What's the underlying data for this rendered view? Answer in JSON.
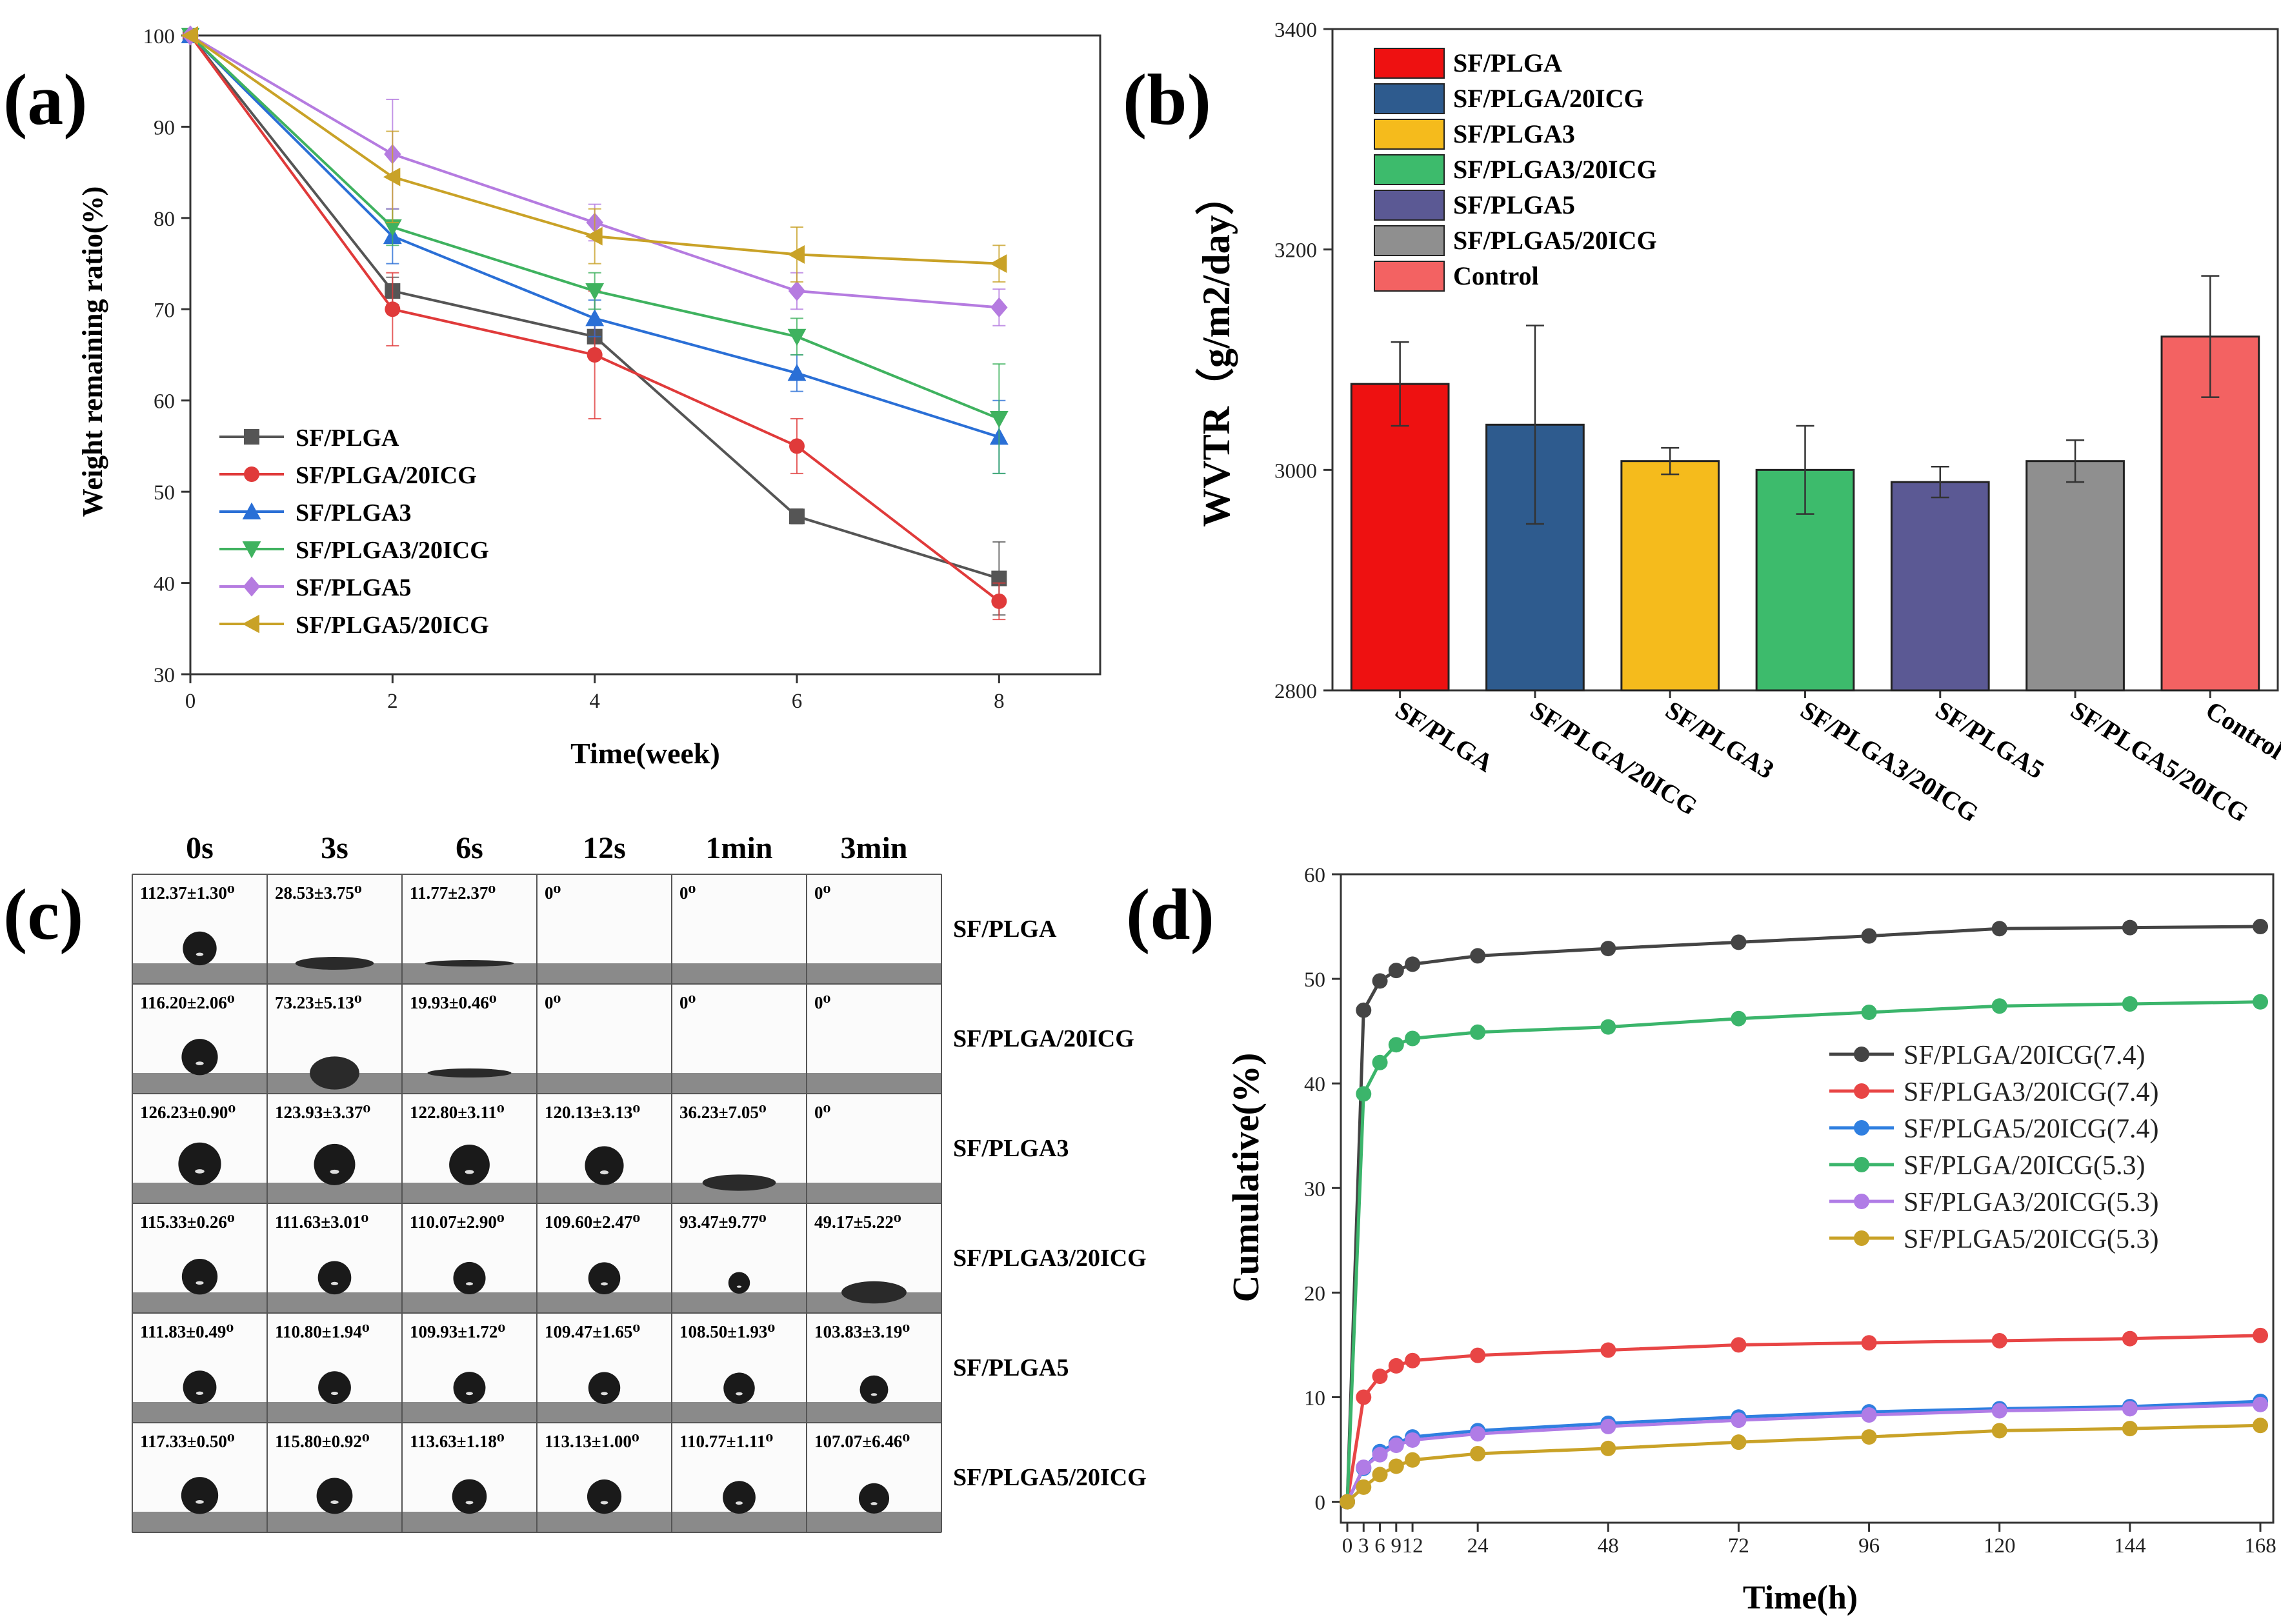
{
  "figure": {
    "labels": [
      "(a)",
      "(b)",
      "(c)",
      "(d)"
    ]
  },
  "chart_data": [
    {
      "id": "a",
      "type": "line",
      "xlabel": "Time(week)",
      "ylabel": "Weight remaining ratio(%)",
      "xlim": [
        0,
        9
      ],
      "ylim": [
        30,
        100
      ],
      "xticks": [
        0,
        2,
        4,
        6,
        8
      ],
      "yticks": [
        30,
        40,
        50,
        60,
        70,
        80,
        90,
        100
      ],
      "legend_position": "bottom-left",
      "x": [
        0,
        2,
        4,
        6,
        8
      ],
      "series": [
        {
          "name": "SF/PLGA",
          "color": "#555555",
          "marker": "square",
          "values": [
            100,
            72,
            67,
            47.3,
            40.5
          ],
          "errors": [
            0,
            1.5,
            1.5,
            0.8,
            4
          ]
        },
        {
          "name": "SF/PLGA/20ICG",
          "color": "#e03a3a",
          "marker": "circle",
          "values": [
            100,
            70,
            65,
            55,
            38
          ],
          "errors": [
            0,
            4,
            7,
            3,
            2
          ]
        },
        {
          "name": "SF/PLGA3",
          "color": "#2a6fd6",
          "marker": "triangle-up",
          "values": [
            100,
            78,
            69,
            63,
            56
          ],
          "errors": [
            0,
            3,
            2,
            2,
            4
          ]
        },
        {
          "name": "SF/PLGA3/20ICG",
          "color": "#3fb25f",
          "marker": "triangle-down",
          "values": [
            100,
            79,
            72,
            67,
            58
          ],
          "errors": [
            0,
            2,
            2,
            2,
            6
          ]
        },
        {
          "name": "SF/PLGA5",
          "color": "#b57be0",
          "marker": "diamond",
          "values": [
            100,
            87,
            79.5,
            72,
            70.2
          ],
          "errors": [
            0,
            6,
            2,
            2,
            2
          ]
        },
        {
          "name": "SF/PLGA5/20ICG",
          "color": "#c9a227",
          "marker": "triangle-left",
          "values": [
            100,
            84.5,
            78,
            76,
            75
          ],
          "errors": [
            0,
            5,
            3,
            3,
            2
          ]
        }
      ]
    },
    {
      "id": "b",
      "type": "bar",
      "ylabel": "WVTR（g/m2/day）",
      "ylim": [
        2800,
        3400
      ],
      "yticks": [
        2800,
        3000,
        3200,
        3400
      ],
      "legend_position": "top-left",
      "categories": [
        "SF/PLGA",
        "SF/PLGA/20ICG",
        "SF/PLGA3",
        "SF/PLGA3/20ICG",
        "SF/PLGA5",
        "SF/PLGA5/20ICG",
        "Control"
      ],
      "values": [
        3078,
        3041,
        3008,
        3000,
        2989,
        3008,
        3121
      ],
      "errors": [
        38,
        90,
        12,
        40,
        14,
        19,
        55
      ],
      "colors": [
        "#ee1111",
        "#2e5b8e",
        "#f5bb1c",
        "#3dbb6c",
        "#5b5994",
        "#8f8f8f",
        "#f36262"
      ]
    },
    {
      "id": "c",
      "type": "table",
      "columns": [
        "0s",
        "3s",
        "6s",
        "12s",
        "1min",
        "3min"
      ],
      "rows": [
        {
          "label": "SF/PLGA",
          "angles": [
            "112.37±1.30⁰",
            "28.53±3.75⁰",
            "11.77±2.37⁰",
            "0⁰",
            "0⁰",
            "0⁰"
          ]
        },
        {
          "label": "SF/PLGA/20ICG",
          "angles": [
            "116.20±2.06⁰",
            "73.23±5.13⁰",
            "19.93±0.46⁰",
            "0⁰",
            "0⁰",
            "0⁰"
          ]
        },
        {
          "label": "SF/PLGA3",
          "angles": [
            "126.23±0.90⁰",
            "123.93±3.37⁰",
            "122.80±3.11⁰",
            "120.13±3.13⁰",
            "36.23±7.05⁰",
            "0⁰"
          ]
        },
        {
          "label": "SF/PLGA3/20ICG",
          "angles": [
            "115.33±0.26⁰",
            "111.63±3.01⁰",
            "110.07±2.90⁰",
            "109.60±2.47⁰",
            "93.47±9.77⁰",
            "49.17±5.22⁰"
          ]
        },
        {
          "label": "SF/PLGA5",
          "angles": [
            "111.83±0.49⁰",
            "110.80±1.94⁰",
            "109.93±1.72⁰",
            "109.47±1.65⁰",
            "108.50±1.93⁰",
            "103.83±3.19⁰"
          ]
        },
        {
          "label": "SF/PLGA5/20ICG",
          "angles": [
            "117.33±0.50⁰",
            "115.80±0.92⁰",
            "113.63±1.18⁰",
            "113.13±1.00⁰",
            "110.77±1.11⁰",
            "107.07±6.46⁰"
          ]
        }
      ]
    },
    {
      "id": "d",
      "type": "line",
      "xlabel": "Time(h)",
      "ylabel": "Cumulative(%)",
      "xlim": [
        0,
        168
      ],
      "ylim": [
        -2,
        60
      ],
      "xticks": [
        0,
        3,
        6,
        9,
        12,
        24,
        48,
        72,
        96,
        120,
        144,
        168
      ],
      "xtick_labels": [
        "0",
        "3",
        "6",
        "9",
        "12",
        "24",
        "48",
        "72",
        "96",
        "120",
        "144",
        "168"
      ],
      "yticks": [
        0,
        10,
        20,
        30,
        40,
        50,
        60
      ],
      "legend_position": "center-right",
      "x": [
        0,
        3,
        6,
        9,
        12,
        24,
        48,
        72,
        96,
        120,
        144,
        168
      ],
      "series": [
        {
          "name": "SF/PLGA/20ICG(7.4)",
          "color": "#444444",
          "values": [
            0,
            47,
            49.8,
            50.8,
            51.4,
            52.2,
            52.9,
            53.5,
            54.1,
            54.8,
            54.9,
            55
          ]
        },
        {
          "name": "SF/PLGA3/20ICG(7.4)",
          "color": "#e84545",
          "values": [
            0,
            10,
            12,
            13,
            13.5,
            14,
            14.5,
            15,
            15.2,
            15.4,
            15.6,
            15.9
          ]
        },
        {
          "name": "SF/PLGA5/20ICG(7.4)",
          "color": "#2f7fe0",
          "values": [
            0,
            3.2,
            4.8,
            5.6,
            6.2,
            6.8,
            7.5,
            8.1,
            8.6,
            8.9,
            9.1,
            9.6
          ]
        },
        {
          "name": "SF/PLGA/20ICG(5.3)",
          "color": "#3bb56b",
          "values": [
            0,
            39,
            42,
            43.7,
            44.3,
            44.9,
            45.4,
            46.2,
            46.8,
            47.4,
            47.6,
            47.8
          ]
        },
        {
          "name": "SF/PLGA3/20ICG(5.3)",
          "color": "#b07ce6",
          "values": [
            0,
            3.3,
            4.5,
            5.4,
            5.9,
            6.5,
            7.2,
            7.8,
            8.3,
            8.7,
            8.9,
            9.3
          ]
        },
        {
          "name": "SF/PLGA5/20ICG(5.3)",
          "color": "#c9a227",
          "values": [
            0,
            1.4,
            2.6,
            3.4,
            4,
            4.6,
            5.1,
            5.7,
            6.2,
            6.8,
            7,
            7.3
          ]
        }
      ]
    }
  ]
}
